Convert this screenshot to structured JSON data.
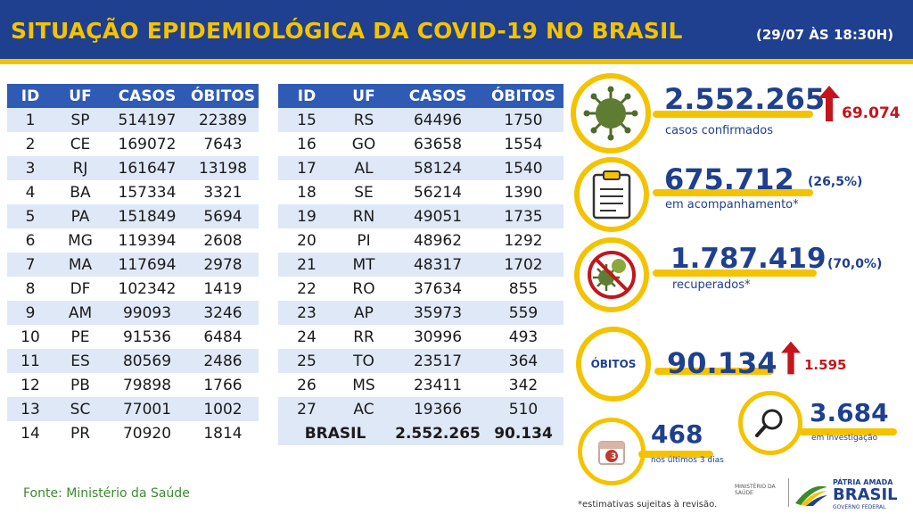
{
  "header": {
    "title": "SITUAÇÃO EPIDEMIOLÓGICA DA COVID-19 NO BRASIL",
    "date": "(29/07 ÀS 18:30H)"
  },
  "table": {
    "headers": [
      "ID",
      "UF",
      "CASOS",
      "ÓBITOS"
    ],
    "left": [
      [
        "1",
        "SP",
        "514197",
        "22389"
      ],
      [
        "2",
        "CE",
        "169072",
        "7643"
      ],
      [
        "3",
        "RJ",
        "161647",
        "13198"
      ],
      [
        "4",
        "BA",
        "157334",
        "3321"
      ],
      [
        "5",
        "PA",
        "151849",
        "5694"
      ],
      [
        "6",
        "MG",
        "119394",
        "2608"
      ],
      [
        "7",
        "MA",
        "117694",
        "2978"
      ],
      [
        "8",
        "DF",
        "102342",
        "1419"
      ],
      [
        "9",
        "AM",
        "99093",
        "3246"
      ],
      [
        "10",
        "PE",
        "91536",
        "6484"
      ],
      [
        "11",
        "ES",
        "80569",
        "2486"
      ],
      [
        "12",
        "PB",
        "79898",
        "1766"
      ],
      [
        "13",
        "SC",
        "77001",
        "1002"
      ],
      [
        "14",
        "PR",
        "70920",
        "1814"
      ]
    ],
    "right": [
      [
        "15",
        "RS",
        "64496",
        "1750"
      ],
      [
        "16",
        "GO",
        "63658",
        "1554"
      ],
      [
        "17",
        "AL",
        "58124",
        "1540"
      ],
      [
        "18",
        "SE",
        "56214",
        "1390"
      ],
      [
        "19",
        "RN",
        "49051",
        "1735"
      ],
      [
        "20",
        "PI",
        "48962",
        "1292"
      ],
      [
        "21",
        "MT",
        "48317",
        "1702"
      ],
      [
        "22",
        "RO",
        "37634",
        "855"
      ],
      [
        "23",
        "AP",
        "35973",
        "559"
      ],
      [
        "24",
        "RR",
        "30996",
        "493"
      ],
      [
        "25",
        "TO",
        "23517",
        "364"
      ],
      [
        "26",
        "MS",
        "23411",
        "342"
      ],
      [
        "27",
        "AC",
        "19366",
        "510"
      ]
    ],
    "total": {
      "label": "BRASIL",
      "casos": "2.552.265",
      "obitos": "90.134"
    }
  },
  "stats": {
    "confirmed": {
      "value": "2.552.265",
      "label": "casos confirmados",
      "increase": "69.074"
    },
    "monitoring": {
      "value": "675.712",
      "pct": "(26,5%)",
      "label": "em acompanhamento*"
    },
    "recovered": {
      "value": "1.787.419",
      "pct": "(70,0%)",
      "label": "recuperados*"
    },
    "deaths": {
      "badge": "ÓBITOS",
      "value": "90.134",
      "increase": "1.595"
    },
    "investigation": {
      "value": "3.684",
      "label": "em investigação"
    },
    "recent": {
      "value": "468",
      "label": "nos últimos 3 dias",
      "calendar_number": "3"
    }
  },
  "footer": {
    "source": "Fonte: Ministério da Saúde",
    "note": "*estimativas sujeitas à revisão.",
    "ministry_logo": "MINISTÉRIO DA SAÚDE",
    "gov_logo_top": "PÁTRIA AMADA",
    "gov_logo_main": "BRASIL",
    "gov_logo_sub": "GOVERNO FEDERAL"
  },
  "colors": {
    "navy": "#1f3f8f",
    "yellow": "#f4c300",
    "red": "#c4151c",
    "table_header": "#2f5bb5",
    "row_alt": "#dfe8f6",
    "green": "#3c8a2e"
  },
  "icons": [
    "virus-icon",
    "clipboard-icon",
    "no-virus-icon",
    "magnifier-icon",
    "calendar-icon",
    "arrow-up-icon"
  ]
}
